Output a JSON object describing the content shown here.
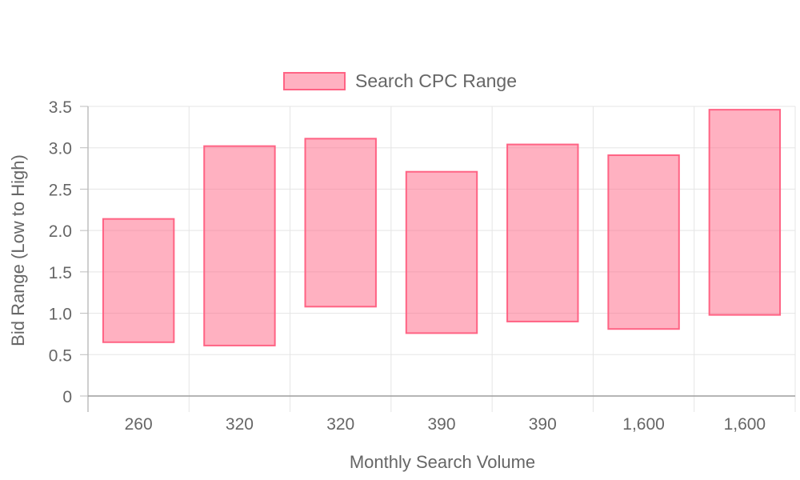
{
  "chart_data": {
    "type": "floating-bar",
    "categories": [
      "260",
      "320",
      "320",
      "390",
      "390",
      "1,600",
      "1,600"
    ],
    "series": [
      {
        "name": "Search CPC Range",
        "ranges": [
          [
            0.65,
            2.14
          ],
          [
            0.61,
            3.02
          ],
          [
            1.08,
            3.11
          ],
          [
            0.76,
            2.71
          ],
          [
            0.9,
            3.04
          ],
          [
            0.81,
            2.91
          ],
          [
            0.98,
            3.46
          ]
        ],
        "color": "#ff6384",
        "fill": "rgba(255,99,132,0.5)"
      }
    ],
    "xlabel": "Monthly Search Volume",
    "ylabel": "Bid Range (Low to High)",
    "ylim": [
      0,
      3.5
    ],
    "yticks": [
      "0",
      "0.5",
      "1.0",
      "1.5",
      "2.0",
      "2.5",
      "3.0",
      "3.5"
    ],
    "grid": true,
    "legend_position": "top"
  }
}
